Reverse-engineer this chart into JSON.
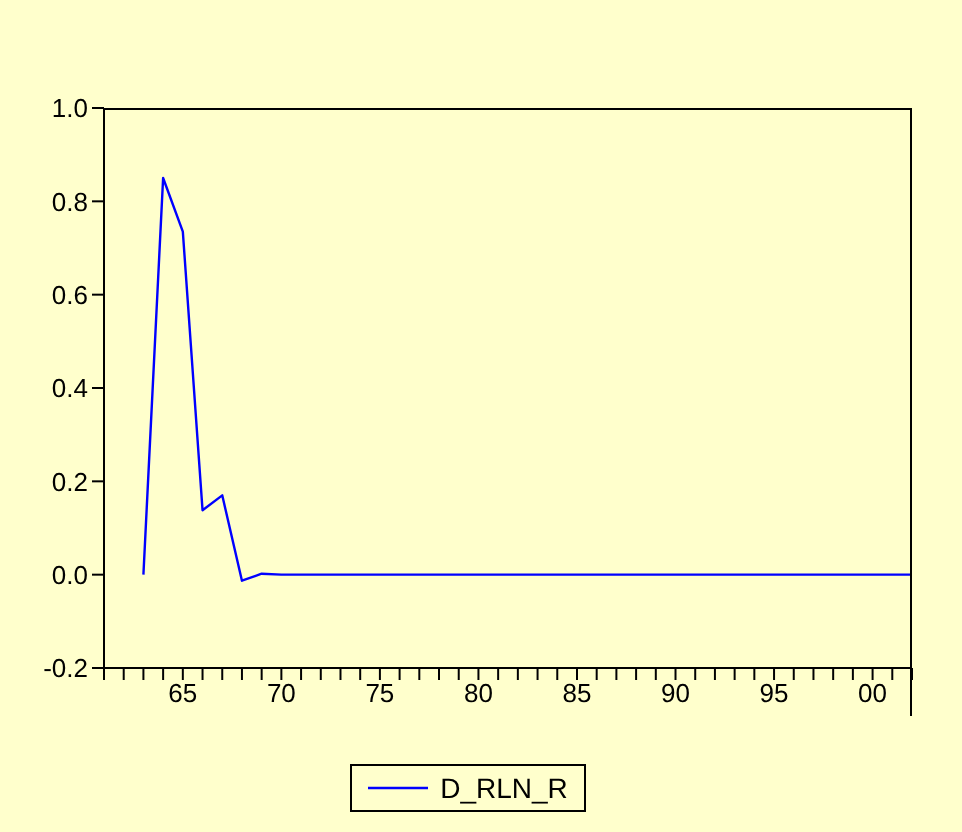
{
  "chart_data": {
    "type": "line",
    "x": [
      1963,
      1964,
      1965,
      1966,
      1967,
      1968,
      1969,
      1970,
      1971,
      1972,
      1973,
      1974,
      1975,
      1976,
      1977,
      1978,
      1979,
      1980,
      1981,
      1982,
      1983,
      1984,
      1985,
      1986,
      1987,
      1988,
      1989,
      1990,
      1991,
      1992,
      1993,
      1994,
      1995,
      1996,
      1997,
      1998,
      1999,
      2000,
      2001,
      2002
    ],
    "series": [
      {
        "name": "D_RLN_R",
        "color": "#0000ff",
        "values": [
          0,
          0.85,
          0.735,
          0.138,
          0.17,
          -0.013,
          0.002,
          0,
          0,
          0,
          0,
          0,
          0,
          0,
          0,
          0,
          0,
          0,
          0,
          0,
          0,
          0,
          0,
          0,
          0,
          0,
          0,
          0,
          0,
          0,
          0,
          0,
          0,
          0,
          0,
          0,
          0,
          0,
          0,
          0
        ]
      }
    ],
    "xlim": [
      1961,
      2002
    ],
    "xticks": [
      {
        "value": 1961,
        "label": null
      },
      {
        "value": 1962,
        "label": null
      },
      {
        "value": 1963,
        "label": null
      },
      {
        "value": 1964,
        "label": null
      },
      {
        "value": 1965,
        "label": "65"
      },
      {
        "value": 1966,
        "label": null
      },
      {
        "value": 1967,
        "label": null
      },
      {
        "value": 1968,
        "label": null
      },
      {
        "value": 1969,
        "label": null
      },
      {
        "value": 1970,
        "label": "70"
      },
      {
        "value": 1971,
        "label": null
      },
      {
        "value": 1972,
        "label": null
      },
      {
        "value": 1973,
        "label": null
      },
      {
        "value": 1974,
        "label": null
      },
      {
        "value": 1975,
        "label": "75"
      },
      {
        "value": 1976,
        "label": null
      },
      {
        "value": 1977,
        "label": null
      },
      {
        "value": 1978,
        "label": null
      },
      {
        "value": 1979,
        "label": null
      },
      {
        "value": 1980,
        "label": "80"
      },
      {
        "value": 1981,
        "label": null
      },
      {
        "value": 1982,
        "label": null
      },
      {
        "value": 1983,
        "label": null
      },
      {
        "value": 1984,
        "label": null
      },
      {
        "value": 1985,
        "label": "85"
      },
      {
        "value": 1986,
        "label": null
      },
      {
        "value": 1987,
        "label": null
      },
      {
        "value": 1988,
        "label": null
      },
      {
        "value": 1989,
        "label": null
      },
      {
        "value": 1990,
        "label": "90"
      },
      {
        "value": 1991,
        "label": null
      },
      {
        "value": 1992,
        "label": null
      },
      {
        "value": 1993,
        "label": null
      },
      {
        "value": 1994,
        "label": null
      },
      {
        "value": 1995,
        "label": "95"
      },
      {
        "value": 1996,
        "label": null
      },
      {
        "value": 1997,
        "label": null
      },
      {
        "value": 1998,
        "label": null
      },
      {
        "value": 1999,
        "label": null
      },
      {
        "value": 2000,
        "label": "00"
      },
      {
        "value": 2001,
        "label": null
      },
      {
        "value": 2002,
        "label": null
      }
    ],
    "ylim": [
      -0.2,
      1.0
    ],
    "yticks": [
      {
        "value": -0.2,
        "label": "-0.2"
      },
      {
        "value": 0,
        "label": "0.0"
      },
      {
        "value": 0.2,
        "label": "0.2"
      },
      {
        "value": 0.4,
        "label": "0.4"
      },
      {
        "value": 0.6,
        "label": "0.6"
      },
      {
        "value": 0.8,
        "label": "0.8"
      },
      {
        "value": 1.0,
        "label": "1.0"
      }
    ],
    "legend": "bottom"
  }
}
